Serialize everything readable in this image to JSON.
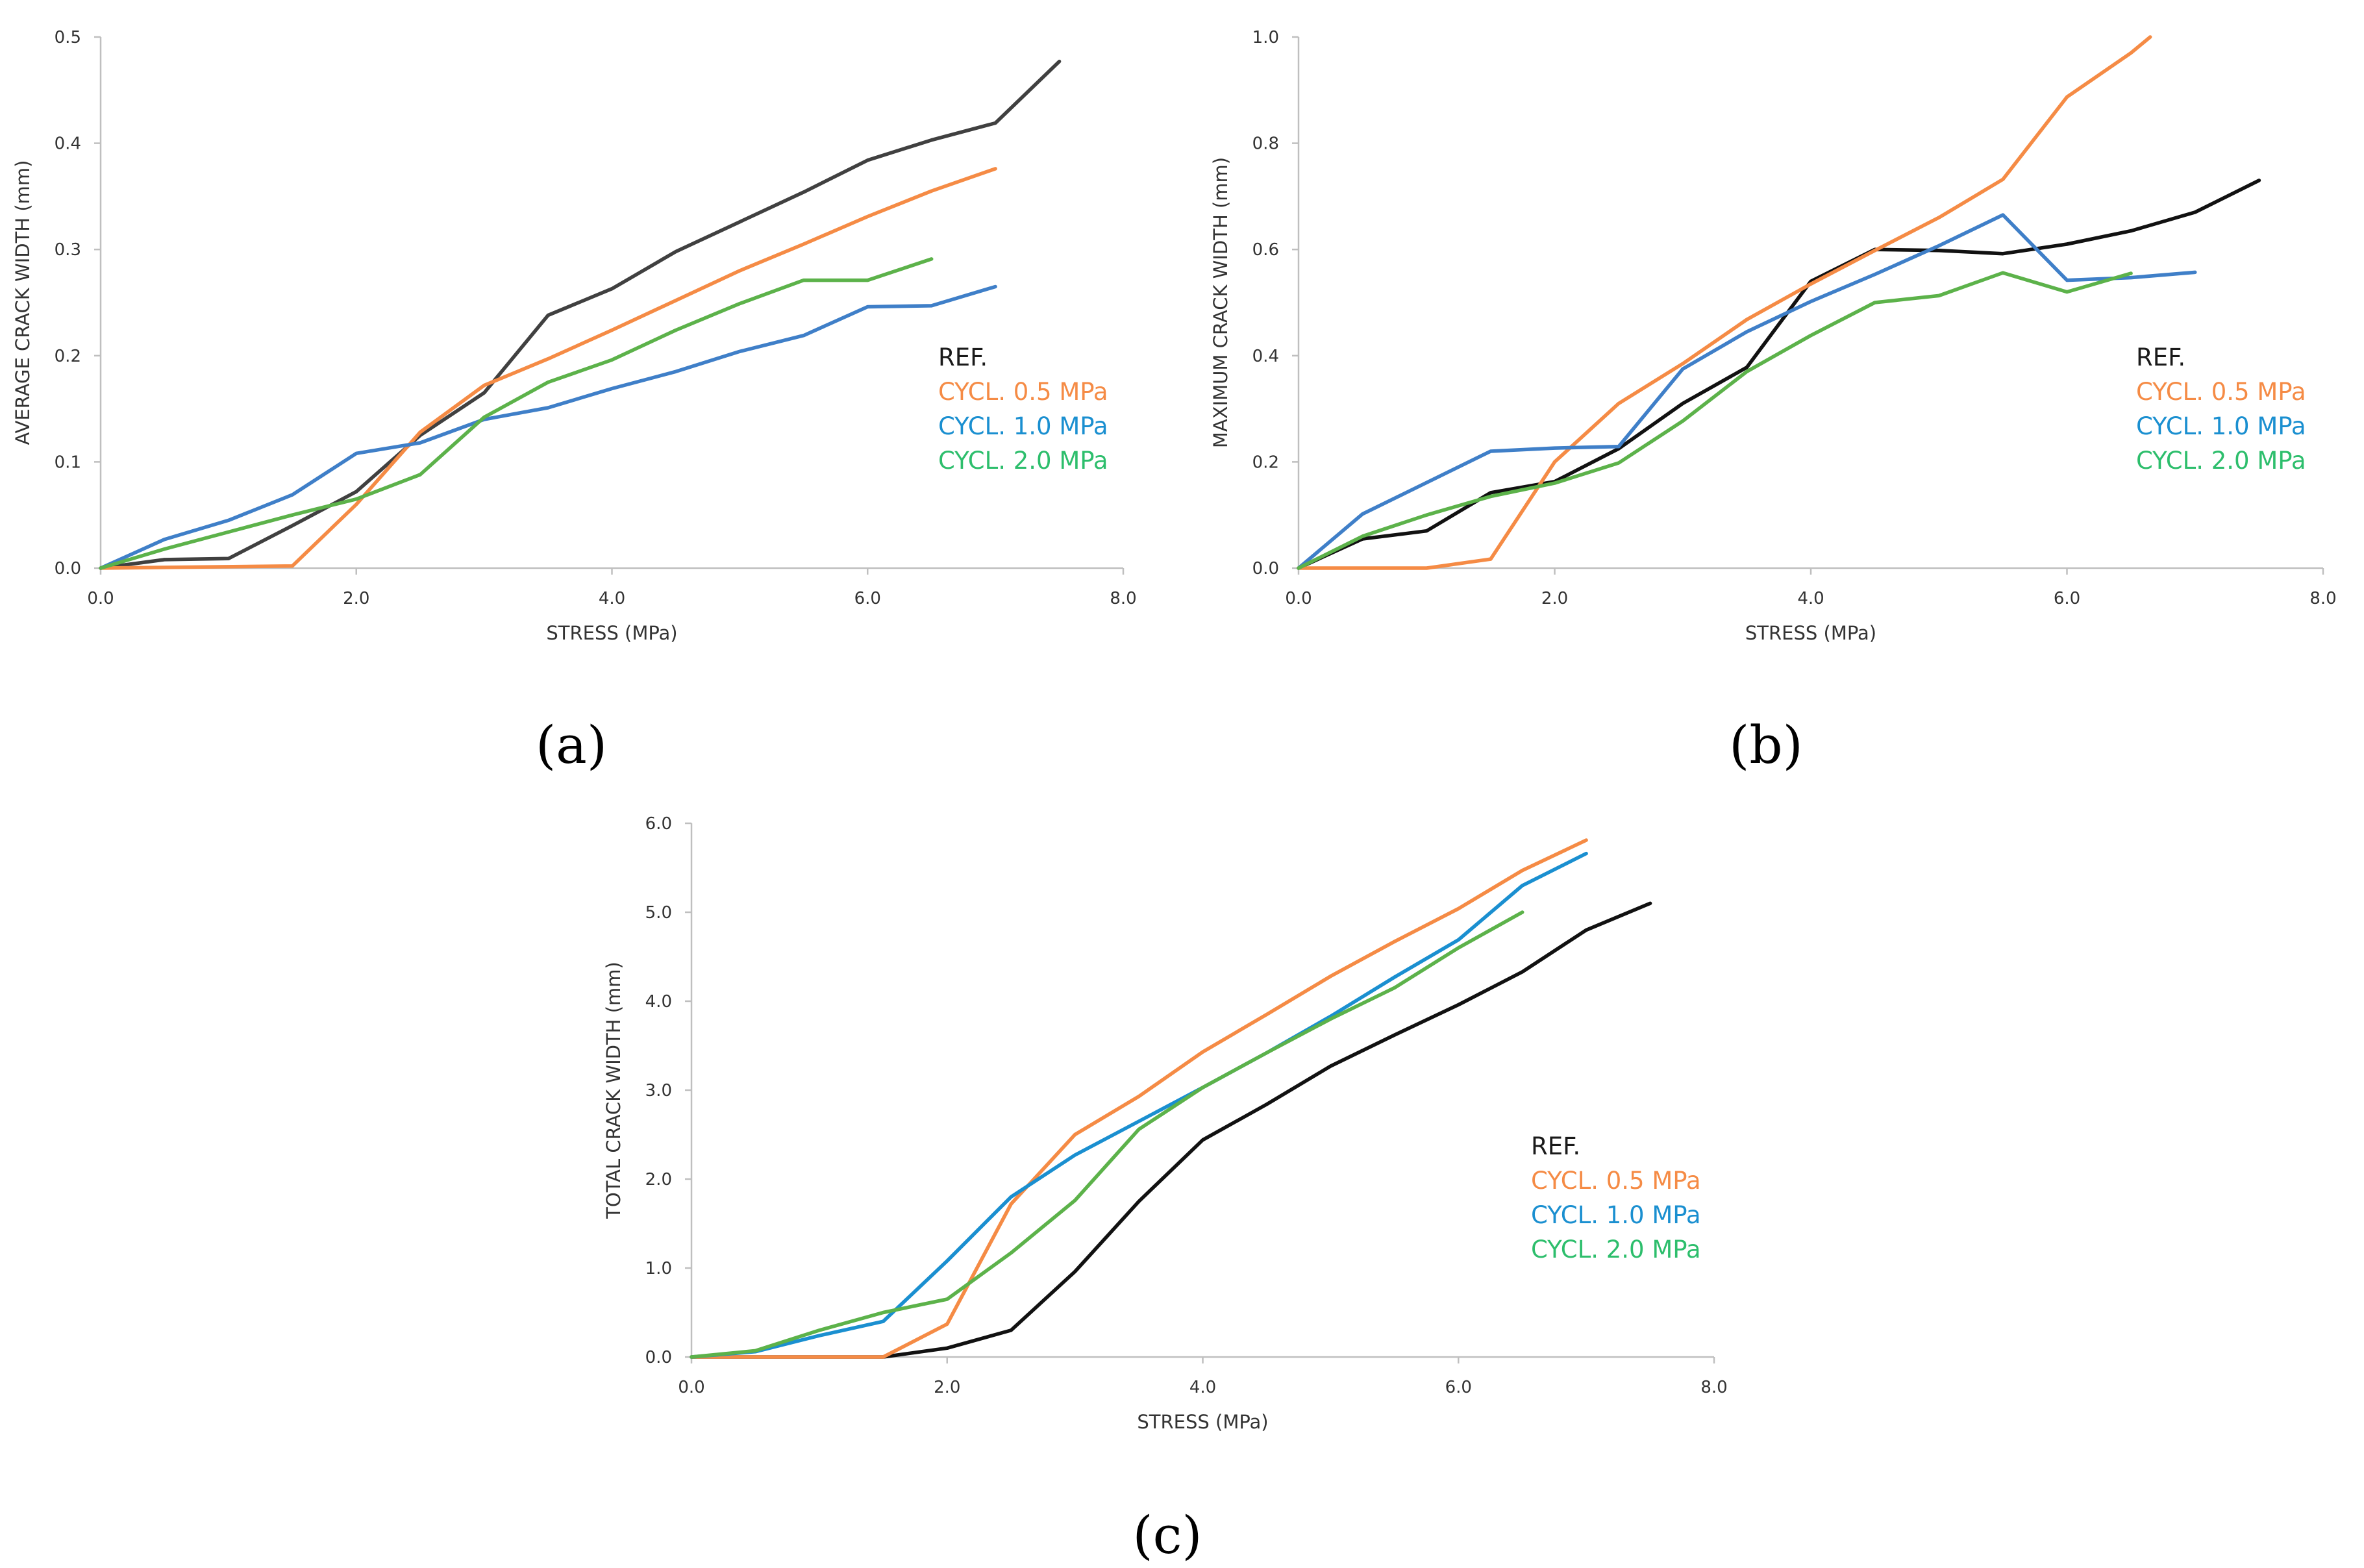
{
  "chart_data": [
    {
      "type": "line",
      "caption": "(a)",
      "xlabel": "STRESS (MPa)",
      "ylabel": "AVERAGE CRACK WIDTH (mm)",
      "xlim": [
        0,
        8
      ],
      "ylim": [
        0,
        0.5
      ],
      "xticks": [
        "0.0",
        "2.0",
        "4.0",
        "6.0",
        "8.0"
      ],
      "yticks": [
        "0.0",
        "0.1",
        "0.2",
        "0.3",
        "0.4",
        "0.5"
      ],
      "legend_position": "right",
      "series": [
        {
          "name": "REF.",
          "color": "#404040",
          "legend_color": "#1a1a1a",
          "x": [
            0,
            0.5,
            1.0,
            1.5,
            2.0,
            2.5,
            3.0,
            3.5,
            4.0,
            4.5,
            5.0,
            5.5,
            6.0,
            6.5,
            7.0,
            7.5
          ],
          "y": [
            0,
            0.008,
            0.009,
            0.04,
            0.072,
            0.125,
            0.165,
            0.238,
            0.263,
            0.298,
            0.326,
            0.354,
            0.384,
            0.403,
            0.419,
            0.477
          ]
        },
        {
          "name": "CYCL. 0.5 MPa",
          "color": "#f58b45",
          "legend_color": "#f58b45",
          "x": [
            0,
            1.5,
            2.0,
            2.5,
            3.0,
            3.5,
            4.0,
            4.5,
            5.0,
            5.5,
            6.0,
            6.5,
            7.0
          ],
          "y": [
            0,
            0.002,
            0.06,
            0.128,
            0.172,
            0.197,
            0.224,
            0.252,
            0.28,
            0.305,
            0.331,
            0.355,
            0.376
          ]
        },
        {
          "name": "CYCL. 1.0 MPa",
          "color": "#3f7fc8",
          "legend_color": "#1a8fd0",
          "x": [
            0,
            0.5,
            1.0,
            1.5,
            2.0,
            2.5,
            3.0,
            3.5,
            4.0,
            4.5,
            5.0,
            5.5,
            6.0,
            6.5,
            7.0
          ],
          "y": [
            0,
            0.027,
            0.045,
            0.069,
            0.108,
            0.118,
            0.14,
            0.151,
            0.169,
            0.185,
            0.204,
            0.219,
            0.246,
            0.247,
            0.265
          ]
        },
        {
          "name": "CYCL. 2.0 MPa",
          "color": "#5cb24a",
          "legend_color": "#2dbe6c",
          "x": [
            0,
            0.5,
            1.0,
            1.5,
            2.0,
            2.5,
            3.0,
            3.5,
            4.0,
            4.5,
            5.0,
            5.5,
            6.0,
            6.5
          ],
          "y": [
            0,
            0.018,
            0.034,
            0.05,
            0.065,
            0.088,
            0.142,
            0.175,
            0.196,
            0.224,
            0.249,
            0.271,
            0.271,
            0.291
          ]
        }
      ]
    },
    {
      "type": "line",
      "caption": "(b)",
      "xlabel": "STRESS (MPa)",
      "ylabel": "MAXIMUM CRACK WIDTH (mm)",
      "xlim": [
        0,
        8
      ],
      "ylim": [
        0,
        1.0
      ],
      "xticks": [
        "0.0",
        "2.0",
        "4.0",
        "6.0",
        "8.0"
      ],
      "yticks": [
        "0.0",
        "0.2",
        "0.4",
        "0.6",
        "0.8",
        "1.0"
      ],
      "legend_position": "right",
      "series": [
        {
          "name": "REF.",
          "color": "#111111",
          "legend_color": "#1a1a1a",
          "x": [
            0,
            0.5,
            1.0,
            1.5,
            2.0,
            2.5,
            3.0,
            3.5,
            4.0,
            4.5,
            5.0,
            5.5,
            6.0,
            6.5,
            7.0,
            7.5
          ],
          "y": [
            0,
            0.055,
            0.07,
            0.142,
            0.163,
            0.225,
            0.31,
            0.378,
            0.54,
            0.6,
            0.598,
            0.592,
            0.61,
            0.635,
            0.67,
            0.73
          ]
        },
        {
          "name": "CYCL. 0.5 MPa",
          "color": "#f58b45",
          "legend_color": "#f58b45",
          "x": [
            0,
            1.0,
            1.5,
            2.0,
            2.5,
            3.0,
            3.5,
            4.0,
            4.5,
            5.0,
            5.5,
            6.0,
            6.5,
            6.65
          ],
          "y": [
            0,
            0.0,
            0.017,
            0.2,
            0.31,
            0.385,
            0.468,
            0.535,
            0.598,
            0.66,
            0.732,
            0.887,
            0.97,
            1.0
          ]
        },
        {
          "name": "CYCL. 1.0 MPa",
          "color": "#3f7fc8",
          "legend_color": "#1a8fd0",
          "x": [
            0,
            0.5,
            1.5,
            2.0,
            2.5,
            3.0,
            3.5,
            4.0,
            4.5,
            5.0,
            5.5,
            6.0,
            6.5,
            7.0
          ],
          "y": [
            0,
            0.102,
            0.22,
            0.226,
            0.229,
            0.375,
            0.445,
            0.502,
            0.553,
            0.607,
            0.665,
            0.542,
            0.547,
            0.557
          ]
        },
        {
          "name": "CYCL. 2.0 MPa",
          "color": "#5cb24a",
          "legend_color": "#2dbe6c",
          "x": [
            0,
            0.5,
            1.0,
            1.5,
            2.0,
            2.5,
            3.0,
            3.5,
            4.0,
            4.5,
            5.0,
            5.5,
            6.0,
            6.5
          ],
          "y": [
            0,
            0.06,
            0.1,
            0.135,
            0.16,
            0.198,
            0.277,
            0.37,
            0.438,
            0.5,
            0.513,
            0.556,
            0.52,
            0.555
          ]
        }
      ]
    },
    {
      "type": "line",
      "caption": "(c)",
      "xlabel": "STRESS (MPa)",
      "ylabel": "TOTAL CRACK WIDTH (mm)",
      "xlim": [
        0,
        8
      ],
      "ylim": [
        0,
        6.0
      ],
      "xticks": [
        "0.0",
        "2.0",
        "4.0",
        "6.0",
        "8.0"
      ],
      "yticks": [
        "0.0",
        "1.0",
        "2.0",
        "3.0",
        "4.0",
        "5.0",
        "6.0"
      ],
      "legend_position": "right",
      "series": [
        {
          "name": "REF.",
          "color": "#111111",
          "legend_color": "#1a1a1a",
          "x": [
            0,
            1.5,
            2.0,
            2.5,
            3.0,
            3.5,
            4.0,
            4.5,
            5.0,
            5.5,
            6.0,
            6.5,
            7.0,
            7.5
          ],
          "y": [
            0,
            0.0,
            0.1,
            0.3,
            0.96,
            1.75,
            2.44,
            2.84,
            3.27,
            3.62,
            3.96,
            4.33,
            4.8,
            5.1
          ]
        },
        {
          "name": "CYCL. 0.5 MPa",
          "color": "#f58b45",
          "legend_color": "#f58b45",
          "x": [
            0,
            1.5,
            2.0,
            2.5,
            3.0,
            3.5,
            4.0,
            4.5,
            5.0,
            5.5,
            6.0,
            6.5,
            7.0
          ],
          "y": [
            0,
            0.0,
            0.37,
            1.72,
            2.5,
            2.93,
            3.43,
            3.85,
            4.28,
            4.67,
            5.04,
            5.47,
            5.81
          ]
        },
        {
          "name": "CYCL. 1.0 MPa",
          "color": "#1a8fd0",
          "legend_color": "#1a8fd0",
          "x": [
            0,
            0.5,
            1.0,
            1.5,
            2.0,
            2.5,
            3.0,
            3.5,
            4.0,
            4.5,
            5.0,
            5.5,
            6.0,
            6.5,
            7.0
          ],
          "y": [
            0,
            0.06,
            0.24,
            0.4,
            1.08,
            1.8,
            2.27,
            2.65,
            3.03,
            3.42,
            3.83,
            4.27,
            4.69,
            5.3,
            5.66
          ]
        },
        {
          "name": "CYCL. 2.0 MPa",
          "color": "#5cb24a",
          "legend_color": "#2dbe6c",
          "x": [
            0,
            0.5,
            1.0,
            1.5,
            2.0,
            2.5,
            3.0,
            3.5,
            4.0,
            4.5,
            5.0,
            5.5,
            6.0,
            6.5
          ],
          "y": [
            0,
            0.07,
            0.3,
            0.5,
            0.65,
            1.17,
            1.76,
            2.56,
            3.03,
            3.42,
            3.8,
            4.15,
            4.6,
            5.0
          ]
        }
      ]
    }
  ]
}
